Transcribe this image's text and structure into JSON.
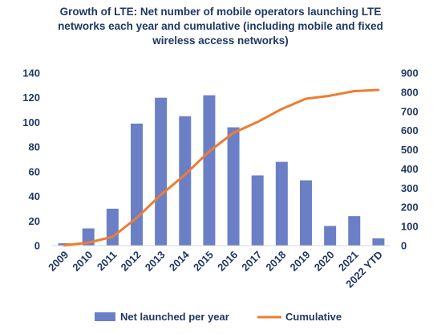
{
  "chart_data": {
    "type": "bar",
    "title_lines": [
      "Growth of LTE: Net number of mobile operators launching LTE",
      "networks each year and cumulative (including mobile and fixed",
      "wireless access networks)"
    ],
    "categories": [
      "2009",
      "2010",
      "2011",
      "2012",
      "2013",
      "2014",
      "2015",
      "2016",
      "2017",
      "2018",
      "2019",
      "2020",
      "2021",
      "2022 YTD"
    ],
    "series": [
      {
        "name": "Net launched per year",
        "type": "bar",
        "axis": "left",
        "color": "#6b7fc7",
        "values": [
          2,
          14,
          30,
          99,
          120,
          105,
          122,
          96,
          57,
          68,
          53,
          16,
          24,
          6
        ]
      },
      {
        "name": "Cumulative",
        "type": "line",
        "axis": "right",
        "color": "#ed7d31",
        "values": [
          2,
          16,
          46,
          145,
          265,
          370,
          492,
          588,
          645,
          713,
          766,
          782,
          806,
          812
        ]
      }
    ],
    "y_left": {
      "min": 0,
      "max": 140,
      "ticks": [
        0,
        20,
        40,
        60,
        80,
        100,
        120,
        140
      ]
    },
    "y_right": {
      "min": 0,
      "max": 900,
      "ticks": [
        0,
        100,
        200,
        300,
        400,
        500,
        600,
        700,
        800,
        900
      ]
    },
    "grid": false,
    "legend_position": "bottom",
    "text_color": "#1f3864"
  }
}
